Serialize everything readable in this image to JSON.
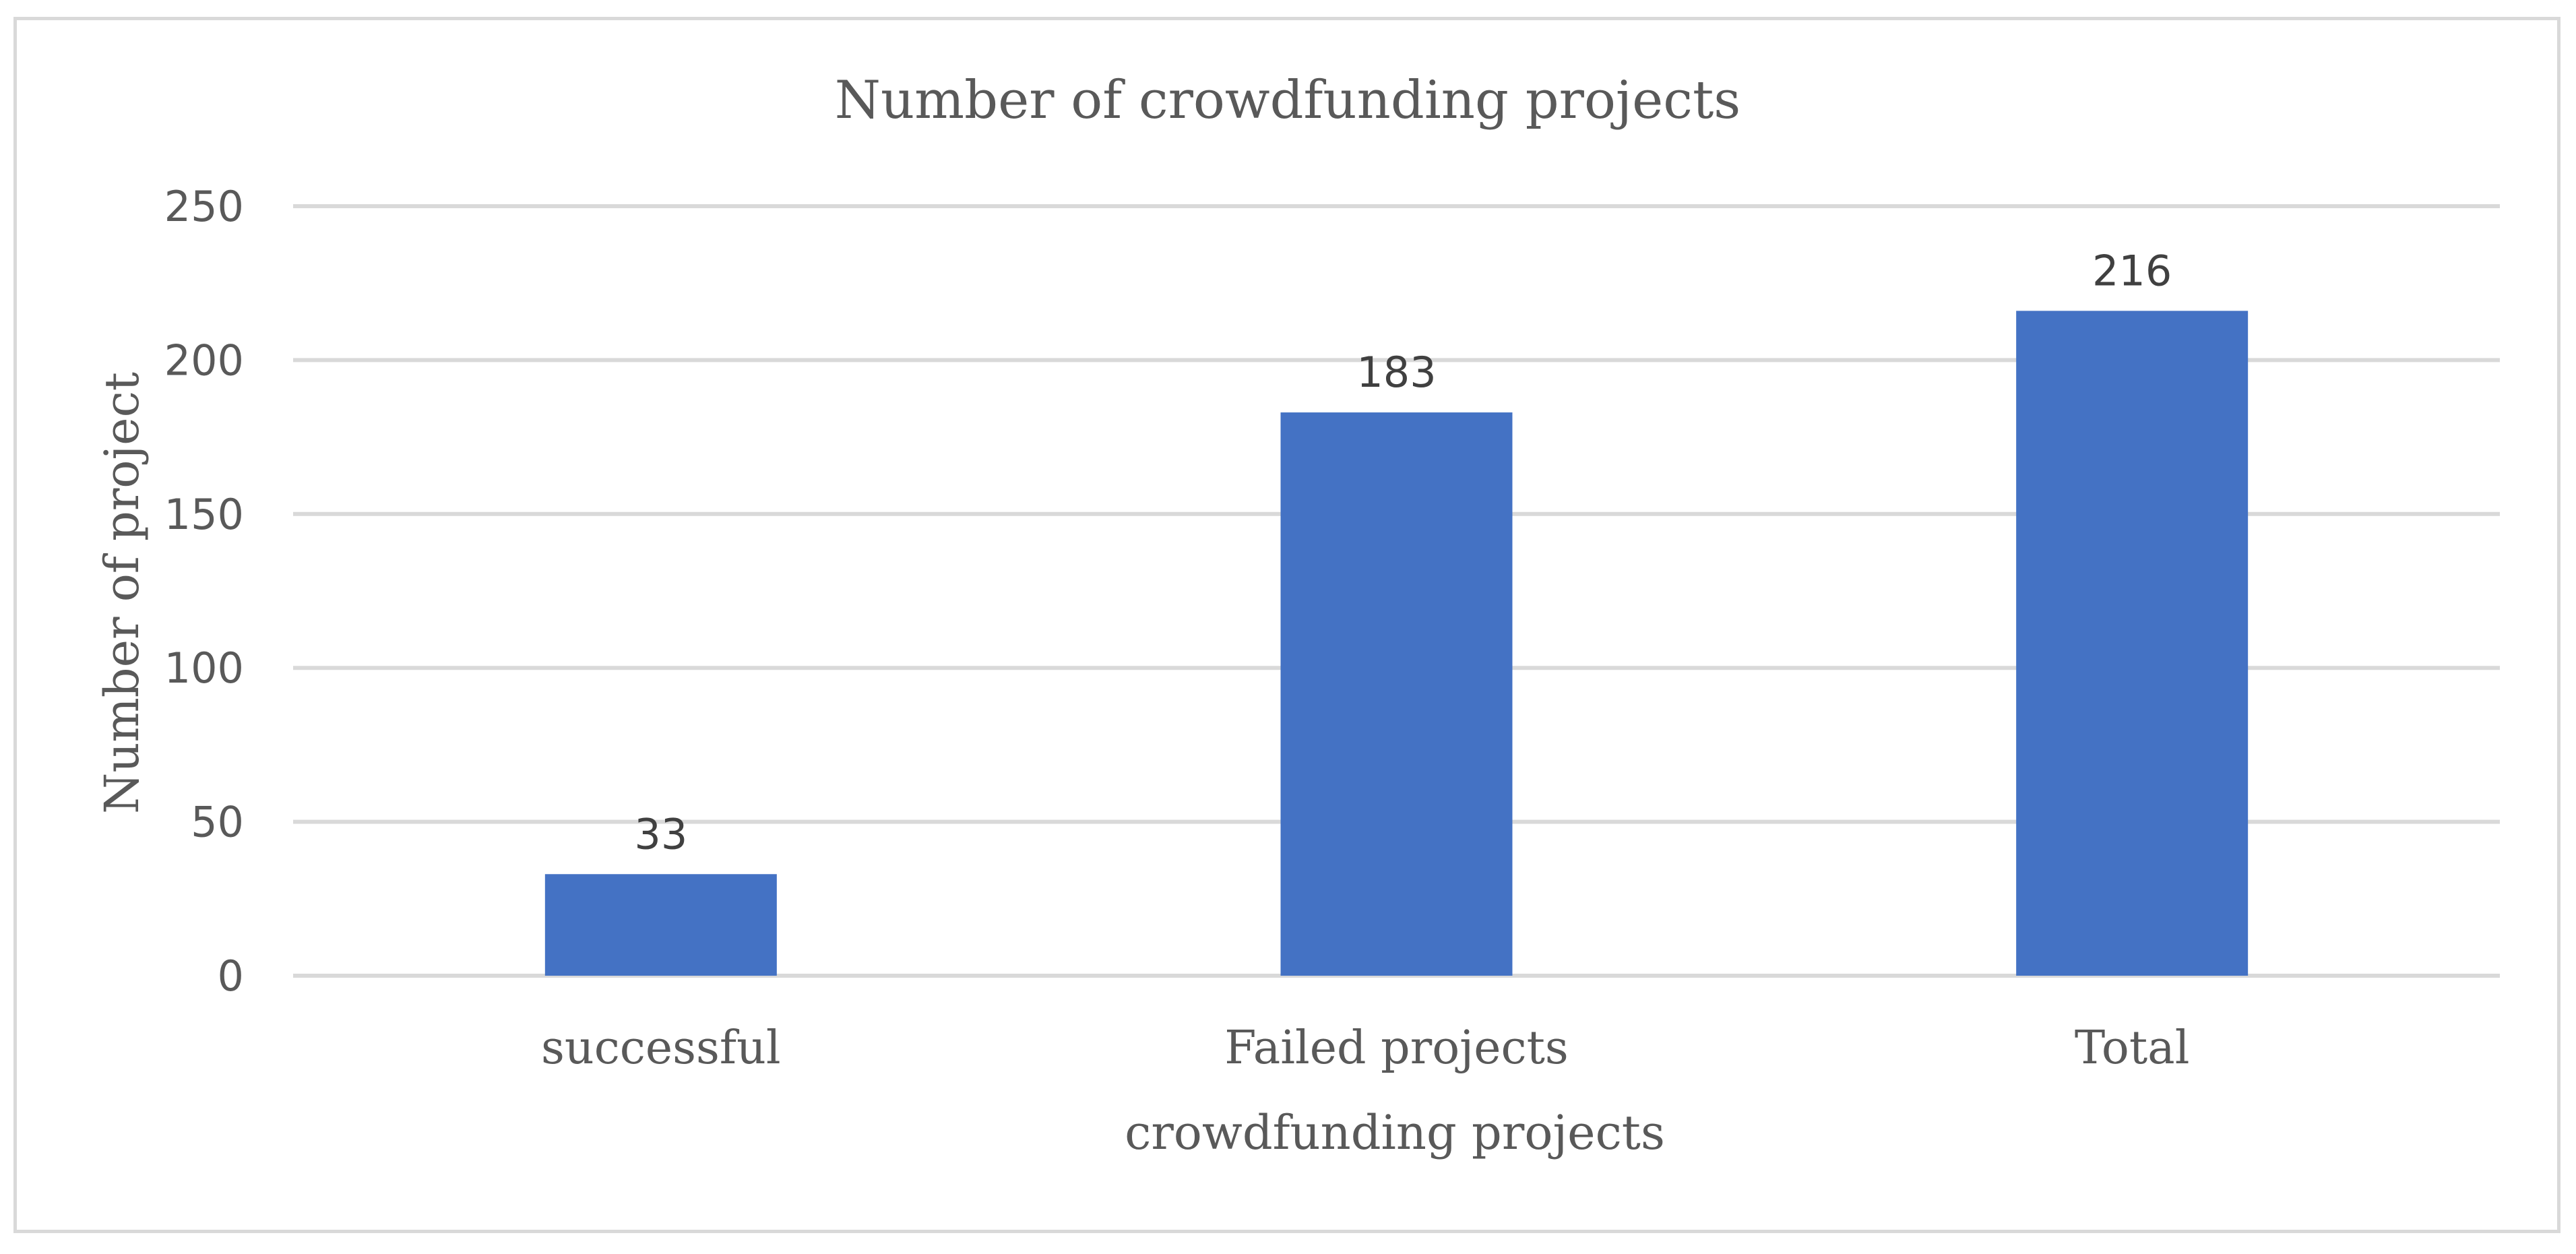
{
  "chart_data": {
    "type": "bar",
    "title": "Number of crowdfunding projects",
    "xlabel": "crowdfunding projects",
    "ylabel": "Number of project",
    "categories": [
      "successful",
      "Failed projects",
      "Total"
    ],
    "values": [
      33,
      183,
      216
    ],
    "data_labels": [
      "33",
      "183",
      "216"
    ],
    "ylim": [
      0,
      250
    ],
    "yticks": [
      0,
      50,
      100,
      150,
      200,
      250
    ],
    "ytick_labels": [
      "0",
      "50",
      "100",
      "150",
      "200",
      "250"
    ],
    "grid": true,
    "legend": "none",
    "bar_color": "#4472c4"
  }
}
